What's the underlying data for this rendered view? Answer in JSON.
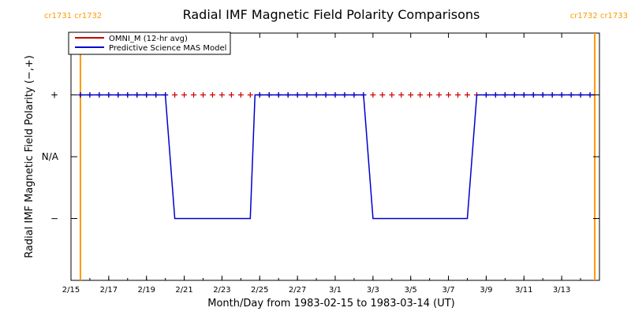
{
  "chart_data": {
    "type": "line",
    "title": "Radial IMF Magnetic Field Polarity Comparisons",
    "xlabel": "Month/Day from 1983-02-15 to 1983-03-14 (UT)",
    "ylabel": "Radial IMF Magnetic Field Polarity (−,+)",
    "xlim": [
      "1983-02-15",
      "1983-03-14"
    ],
    "ylim": [
      -2,
      2
    ],
    "x_ticks": [
      "2/15",
      "2/17",
      "2/19",
      "2/21",
      "2/23",
      "2/25",
      "2/27",
      "3/1",
      "3/3",
      "3/5",
      "3/7",
      "3/9",
      "3/11",
      "3/13"
    ],
    "y_ticks": [
      {
        "value": 1,
        "label": "+"
      },
      {
        "value": 0,
        "label": "N/A"
      },
      {
        "value": -1,
        "label": "−"
      }
    ],
    "carrington_rotations": {
      "colors": "#ff9900",
      "left_label": "cr1731 cr1732",
      "right_label": "cr1732 cr1733",
      "boundaries": [
        "1983-02-15T12:00",
        "1983-03-14T18:00"
      ]
    },
    "series": [
      {
        "name": "OMNI_M (12-hr avg)",
        "color": "#cc0000",
        "marker": "plus",
        "points": [
          {
            "x": "1983-02-15T12:00",
            "y": 1
          },
          {
            "x": "1983-02-16T00:00",
            "y": 1
          },
          {
            "x": "1983-02-16T12:00",
            "y": 1
          },
          {
            "x": "1983-02-17T00:00",
            "y": 1
          },
          {
            "x": "1983-02-17T12:00",
            "y": 1
          },
          {
            "x": "1983-02-18T00:00",
            "y": 1
          },
          {
            "x": "1983-02-18T12:00",
            "y": 1
          },
          {
            "x": "1983-02-19T00:00",
            "y": 1
          },
          {
            "x": "1983-02-19T12:00",
            "y": 1
          },
          {
            "x": "1983-02-20T00:00",
            "y": 1
          },
          {
            "x": "1983-02-20T12:00",
            "y": 1
          },
          {
            "x": "1983-02-21T00:00",
            "y": 1
          },
          {
            "x": "1983-02-21T12:00",
            "y": 1
          },
          {
            "x": "1983-02-22T00:00",
            "y": 1
          },
          {
            "x": "1983-02-22T12:00",
            "y": 1
          },
          {
            "x": "1983-02-23T00:00",
            "y": 1
          },
          {
            "x": "1983-02-23T12:00",
            "y": 1
          },
          {
            "x": "1983-02-24T00:00",
            "y": 1
          },
          {
            "x": "1983-02-24T12:00",
            "y": 1
          },
          {
            "x": "1983-02-25T00:00",
            "y": 1
          },
          {
            "x": "1983-02-25T12:00",
            "y": 1
          },
          {
            "x": "1983-02-26T00:00",
            "y": 1
          },
          {
            "x": "1983-02-26T12:00",
            "y": 1
          },
          {
            "x": "1983-02-27T00:00",
            "y": 1
          },
          {
            "x": "1983-02-27T12:00",
            "y": 1
          },
          {
            "x": "1983-02-28T00:00",
            "y": 1
          },
          {
            "x": "1983-02-28T12:00",
            "y": 1
          },
          {
            "x": "1983-03-01T00:00",
            "y": 1
          },
          {
            "x": "1983-03-01T12:00",
            "y": 1
          },
          {
            "x": "1983-03-02T00:00",
            "y": 1
          },
          {
            "x": "1983-03-02T12:00",
            "y": 1
          },
          {
            "x": "1983-03-03T00:00",
            "y": 1
          },
          {
            "x": "1983-03-03T12:00",
            "y": 1
          },
          {
            "x": "1983-03-04T00:00",
            "y": 1
          },
          {
            "x": "1983-03-04T12:00",
            "y": 1
          },
          {
            "x": "1983-03-05T00:00",
            "y": 1
          },
          {
            "x": "1983-03-05T12:00",
            "y": 1
          },
          {
            "x": "1983-03-06T00:00",
            "y": 1
          },
          {
            "x": "1983-03-06T12:00",
            "y": 1
          },
          {
            "x": "1983-03-07T00:00",
            "y": 1
          },
          {
            "x": "1983-03-07T12:00",
            "y": 1
          },
          {
            "x": "1983-03-08T00:00",
            "y": 1
          },
          {
            "x": "1983-03-08T12:00",
            "y": 1
          },
          {
            "x": "1983-03-09T00:00",
            "y": 1
          },
          {
            "x": "1983-03-09T12:00",
            "y": 1
          },
          {
            "x": "1983-03-10T00:00",
            "y": 1
          },
          {
            "x": "1983-03-10T12:00",
            "y": 1
          },
          {
            "x": "1983-03-11T00:00",
            "y": 1
          },
          {
            "x": "1983-03-11T12:00",
            "y": 1
          },
          {
            "x": "1983-03-12T00:00",
            "y": 1
          },
          {
            "x": "1983-03-12T12:00",
            "y": 1
          },
          {
            "x": "1983-03-13T00:00",
            "y": 1
          },
          {
            "x": "1983-03-13T12:00",
            "y": 1
          },
          {
            "x": "1983-03-14T00:00",
            "y": 1
          },
          {
            "x": "1983-03-14T12:00",
            "y": 1
          }
        ]
      },
      {
        "name": "Predictive Science MAS Model",
        "color": "#0000cc",
        "marker": "plus",
        "points": [
          {
            "x": "1983-02-15T12:00",
            "y": 1
          },
          {
            "x": "1983-02-20T00:00",
            "y": 1
          },
          {
            "x": "1983-02-20T12:00",
            "y": -1
          },
          {
            "x": "1983-02-24T12:00",
            "y": -1
          },
          {
            "x": "1983-02-24T18:00",
            "y": 1
          },
          {
            "x": "1983-03-02T12:00",
            "y": 1
          },
          {
            "x": "1983-03-03T00:00",
            "y": -1
          },
          {
            "x": "1983-03-08T00:00",
            "y": -1
          },
          {
            "x": "1983-03-08T12:00",
            "y": 1
          },
          {
            "x": "1983-03-14T18:00",
            "y": 1
          }
        ],
        "marker_points": [
          {
            "x": "1983-02-15T12:00",
            "y": 1
          },
          {
            "x": "1983-02-16T00:00",
            "y": 1
          },
          {
            "x": "1983-02-16T12:00",
            "y": 1
          },
          {
            "x": "1983-02-17T00:00",
            "y": 1
          },
          {
            "x": "1983-02-17T12:00",
            "y": 1
          },
          {
            "x": "1983-02-18T00:00",
            "y": 1
          },
          {
            "x": "1983-02-18T12:00",
            "y": 1
          },
          {
            "x": "1983-02-19T00:00",
            "y": 1
          },
          {
            "x": "1983-02-19T12:00",
            "y": 1
          },
          {
            "x": "1983-02-20T00:00",
            "y": 1
          },
          {
            "x": "1983-02-25T00:00",
            "y": 1
          },
          {
            "x": "1983-02-25T12:00",
            "y": 1
          },
          {
            "x": "1983-02-26T00:00",
            "y": 1
          },
          {
            "x": "1983-02-26T12:00",
            "y": 1
          },
          {
            "x": "1983-02-27T00:00",
            "y": 1
          },
          {
            "x": "1983-02-27T12:00",
            "y": 1
          },
          {
            "x": "1983-02-28T00:00",
            "y": 1
          },
          {
            "x": "1983-02-28T12:00",
            "y": 1
          },
          {
            "x": "1983-03-01T00:00",
            "y": 1
          },
          {
            "x": "1983-03-01T12:00",
            "y": 1
          },
          {
            "x": "1983-03-02T00:00",
            "y": 1
          },
          {
            "x": "1983-03-02T12:00",
            "y": 1
          },
          {
            "x": "1983-03-09T00:00",
            "y": 1
          },
          {
            "x": "1983-03-09T12:00",
            "y": 1
          },
          {
            "x": "1983-03-10T00:00",
            "y": 1
          },
          {
            "x": "1983-03-10T12:00",
            "y": 1
          },
          {
            "x": "1983-03-11T00:00",
            "y": 1
          },
          {
            "x": "1983-03-11T12:00",
            "y": 1
          },
          {
            "x": "1983-03-12T00:00",
            "y": 1
          },
          {
            "x": "1983-03-12T12:00",
            "y": 1
          },
          {
            "x": "1983-03-13T00:00",
            "y": 1
          },
          {
            "x": "1983-03-13T12:00",
            "y": 1
          },
          {
            "x": "1983-03-14T00:00",
            "y": 1
          },
          {
            "x": "1983-03-14T12:00",
            "y": 1
          }
        ]
      }
    ],
    "grid": false,
    "legend_position": "top-left"
  }
}
